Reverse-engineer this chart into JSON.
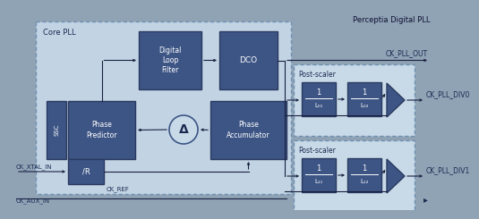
{
  "title": "Perceptia Digital PLL",
  "bg_outer": "#8fa3b5",
  "bg_core_pll": "#c2d4e4",
  "bg_post_scaler": "#c8dae8",
  "box_dark": "#3d5585",
  "box_border": "#2a3a60",
  "dashed_border": "#7090b0",
  "text_light": "#ffffff",
  "text_dark": "#1a2a50",
  "text_label": "#101030",
  "arrow_color": "#1a2040",
  "core_pll_label": "Core PLL",
  "signal_labels": {
    "ck_pll_out": "CK_PLL_OUT",
    "ck_xtal_in": "CK_XTAL_IN",
    "ck_aux_in": "CK_AUX_IN",
    "ck_ref": "CK_REF",
    "ck_pll_div0": "CK_PLL_DIV0",
    "ck_pll_div1": "CK_PLL_DIV1"
  }
}
